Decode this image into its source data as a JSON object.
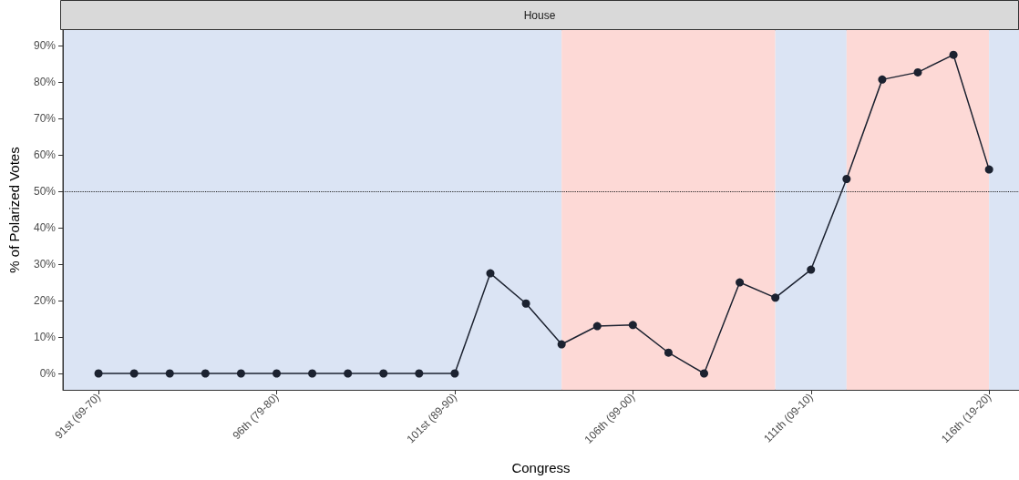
{
  "chart_data": {
    "type": "line",
    "title": "House",
    "xlabel": "Congress",
    "ylabel": "% of Polarized Votes",
    "categories": [
      "91st (69-70)",
      null,
      null,
      null,
      null,
      "96th (79-80)",
      null,
      null,
      null,
      null,
      "101st (89-90)",
      null,
      null,
      null,
      null,
      "106th (99-00)",
      null,
      null,
      null,
      null,
      "111th (09-10)",
      null,
      null,
      null,
      null,
      "116th (19-20)"
    ],
    "series": [
      {
        "color": "#1c2230",
        "values": [
          0,
          0,
          0,
          0,
          0,
          0,
          0,
          0,
          0,
          0,
          0,
          27.5,
          19.2,
          8,
          13,
          13.3,
          5.7,
          0,
          25,
          20.8,
          28.5,
          53.4,
          80.7,
          82.7,
          87.5,
          56
        ]
      }
    ],
    "ylim": [
      -4.5,
      94.3
    ],
    "yticks": [
      {
        "value": 0,
        "label": "0%"
      },
      {
        "value": 10,
        "label": "10%"
      },
      {
        "value": 20,
        "label": "20%"
      },
      {
        "value": 30,
        "label": "30%"
      },
      {
        "value": 40,
        "label": "40%"
      },
      {
        "value": 50,
        "label": "50%"
      },
      {
        "value": 60,
        "label": "60%"
      },
      {
        "value": 70,
        "label": "70%"
      },
      {
        "value": 80,
        "label": "80%"
      },
      {
        "value": 90,
        "label": "90%"
      }
    ],
    "ref_lines": [
      {
        "axis": "y",
        "value": 50,
        "line_style": "dotted",
        "color": "#222222"
      }
    ],
    "marker": "circle",
    "line_style": "solid",
    "grid": false
  }
}
